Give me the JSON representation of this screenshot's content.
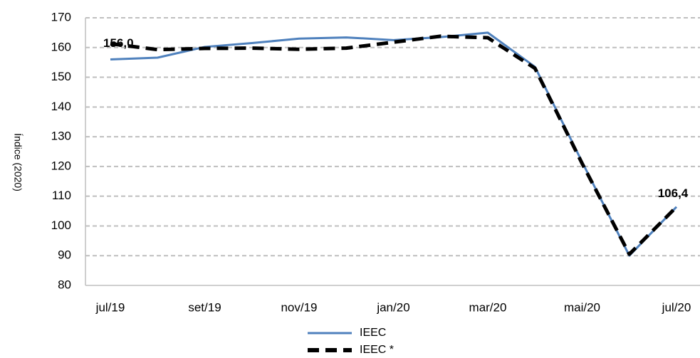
{
  "chart_data": {
    "type": "line",
    "y_axis_label": "Índice (2020)",
    "categories": [
      "jul/19",
      null,
      "set/19",
      null,
      "nov/19",
      null,
      "jan/20",
      null,
      "mar/20",
      null,
      "mai/20",
      null,
      "jul/20"
    ],
    "series": [
      {
        "name": "IEEC",
        "color": "#4f81bd",
        "dash": false,
        "values": [
          156.0,
          156.6,
          160.2,
          161.5,
          163.0,
          163.4,
          162.5,
          163.5,
          165.0,
          153.5,
          121.5,
          90.0,
          106.4
        ],
        "value_labels": [
          "156,0",
          null,
          null,
          null,
          null,
          null,
          null,
          null,
          null,
          null,
          null,
          null,
          "106,4"
        ]
      },
      {
        "name": "IEEC *",
        "color": "#000000",
        "dash": true,
        "values": [
          161.3,
          159.3,
          159.7,
          159.8,
          159.4,
          159.8,
          161.8,
          163.8,
          163.3,
          153.0,
          121.0,
          90.5,
          106.4
        ]
      }
    ],
    "ylim": [
      80,
      170
    ],
    "yticks": [
      80,
      90,
      100,
      110,
      120,
      130,
      140,
      150,
      160,
      170
    ],
    "grid": true,
    "legend": "bottom"
  }
}
